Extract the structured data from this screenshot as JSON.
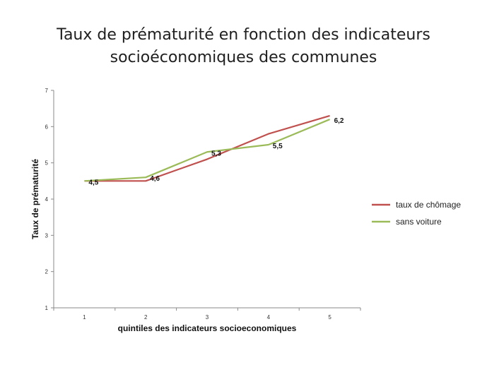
{
  "title": {
    "line1": "Taux de prématurité en fonction des indicateurs",
    "line2": "socioéconomiques des communes"
  },
  "chart_data": {
    "type": "line",
    "x": [
      1,
      2,
      3,
      4,
      5
    ],
    "x_tick_labels": [
      "1",
      "2",
      "3",
      "4",
      "5"
    ],
    "xlabel": "quintiles des indicateurs socioeconomiques",
    "ylabel": "Taux de prématurité",
    "ylim": [
      1,
      7
    ],
    "y_ticks": [
      1,
      2,
      3,
      4,
      5,
      6,
      7
    ],
    "grid": false,
    "legend_position": "right",
    "series": [
      {
        "name": "taux de chômage",
        "color": "#c0504d",
        "values": [
          4.5,
          4.5,
          5.1,
          5.8,
          6.3
        ]
      },
      {
        "name": "sans voiture",
        "color": "#9bbb59",
        "values": [
          4.5,
          4.6,
          5.3,
          5.5,
          6.2
        ]
      }
    ],
    "data_labels": [
      {
        "series": 1,
        "index": 0,
        "text": "4,5"
      },
      {
        "series": 1,
        "index": 1,
        "text": "4,6"
      },
      {
        "series": 1,
        "index": 2,
        "text": "5,3"
      },
      {
        "series": 1,
        "index": 3,
        "text": "5,5"
      },
      {
        "series": 1,
        "index": 4,
        "text": "6,2"
      }
    ]
  }
}
